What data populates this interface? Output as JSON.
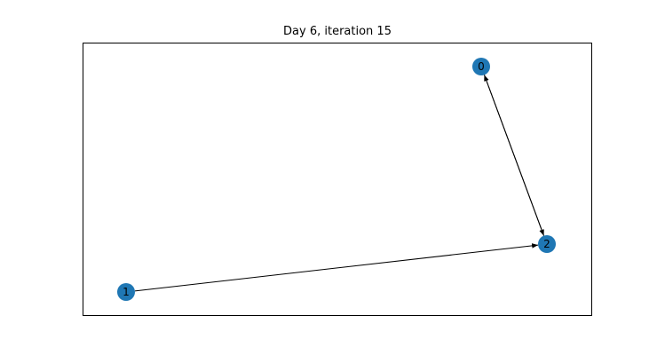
{
  "figure": {
    "title": "Day 6, iteration 15",
    "node_color": "#1f77b4",
    "edge_color": "#000000",
    "frame_color": "#000000"
  },
  "graph": {
    "nodes": [
      {
        "id": "0",
        "label": "0"
      },
      {
        "id": "1",
        "label": "1"
      },
      {
        "id": "2",
        "label": "2"
      }
    ],
    "edges": [
      {
        "source": "0",
        "target": "2"
      },
      {
        "source": "2",
        "target": "0"
      },
      {
        "source": "1",
        "target": "2"
      }
    ],
    "directed": true
  }
}
